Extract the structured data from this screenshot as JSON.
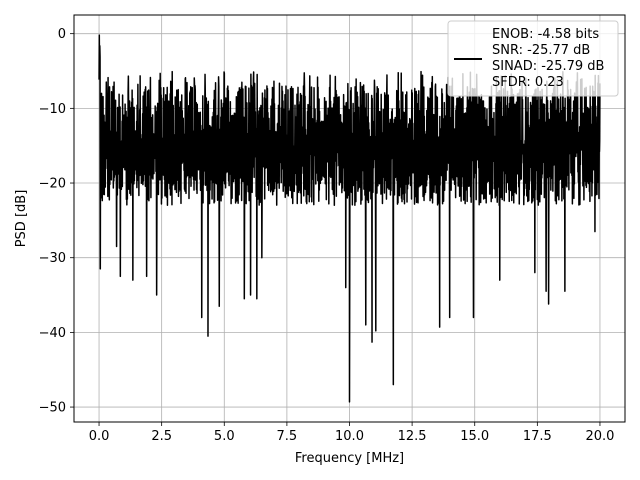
{
  "chart_data": {
    "type": "line",
    "xlabel": "Frequency [MHz]",
    "ylabel": "PSD [dB]",
    "xlim": [
      -1.0,
      21.0
    ],
    "ylim": [
      -52,
      2.5
    ],
    "x_ticks": [
      0.0,
      2.5,
      5.0,
      7.5,
      10.0,
      12.5,
      15.0,
      17.5,
      20.0
    ],
    "x_tick_labels": [
      "0.0",
      "2.5",
      "5.0",
      "7.5",
      "10.0",
      "12.5",
      "15.0",
      "17.5",
      "20.0"
    ],
    "y_ticks": [
      0,
      -10,
      -20,
      -30,
      -40,
      -50
    ],
    "y_tick_labels": [
      "0",
      "−10",
      "−20",
      "−30",
      "−40",
      "−50"
    ],
    "grid": true,
    "legend_position": "top-right",
    "legend_entries": [
      "ENOB: -4.58 bits",
      "SNR: -25.77 dB",
      "SINAD: -25.79 dB",
      "SFDR: 0.23"
    ],
    "series": [
      {
        "color": "#000000",
        "x_range": [
          0.0,
          20.0
        ],
        "points": 2000,
        "peak": {
          "x": 0.02,
          "y": -0.2
        },
        "typical_upper": -7,
        "typical_lower": -25,
        "deep_notches": [
          {
            "x": 0.05,
            "y": -31.5
          },
          {
            "x": 0.7,
            "y": -28.5
          },
          {
            "x": 0.85,
            "y": -32.5
          },
          {
            "x": 1.35,
            "y": -33
          },
          {
            "x": 1.9,
            "y": -32.5
          },
          {
            "x": 2.3,
            "y": -35
          },
          {
            "x": 4.1,
            "y": -38
          },
          {
            "x": 4.35,
            "y": -40.5
          },
          {
            "x": 4.8,
            "y": -36.5
          },
          {
            "x": 5.8,
            "y": -35.5
          },
          {
            "x": 6.05,
            "y": -35
          },
          {
            "x": 6.3,
            "y": -35.5
          },
          {
            "x": 6.5,
            "y": -30
          },
          {
            "x": 9.85,
            "y": -34
          },
          {
            "x": 10.0,
            "y": -49.3
          },
          {
            "x": 10.65,
            "y": -39
          },
          {
            "x": 10.9,
            "y": -41.3
          },
          {
            "x": 11.05,
            "y": -39.8
          },
          {
            "x": 11.75,
            "y": -47
          },
          {
            "x": 13.6,
            "y": -39.3
          },
          {
            "x": 14.0,
            "y": -38
          },
          {
            "x": 14.95,
            "y": -38
          },
          {
            "x": 16.0,
            "y": -33
          },
          {
            "x": 17.4,
            "y": -32
          },
          {
            "x": 17.85,
            "y": -34.5
          },
          {
            "x": 17.95,
            "y": -36.2
          },
          {
            "x": 18.6,
            "y": -34.5
          },
          {
            "x": 19.8,
            "y": -26.5
          }
        ]
      }
    ]
  }
}
